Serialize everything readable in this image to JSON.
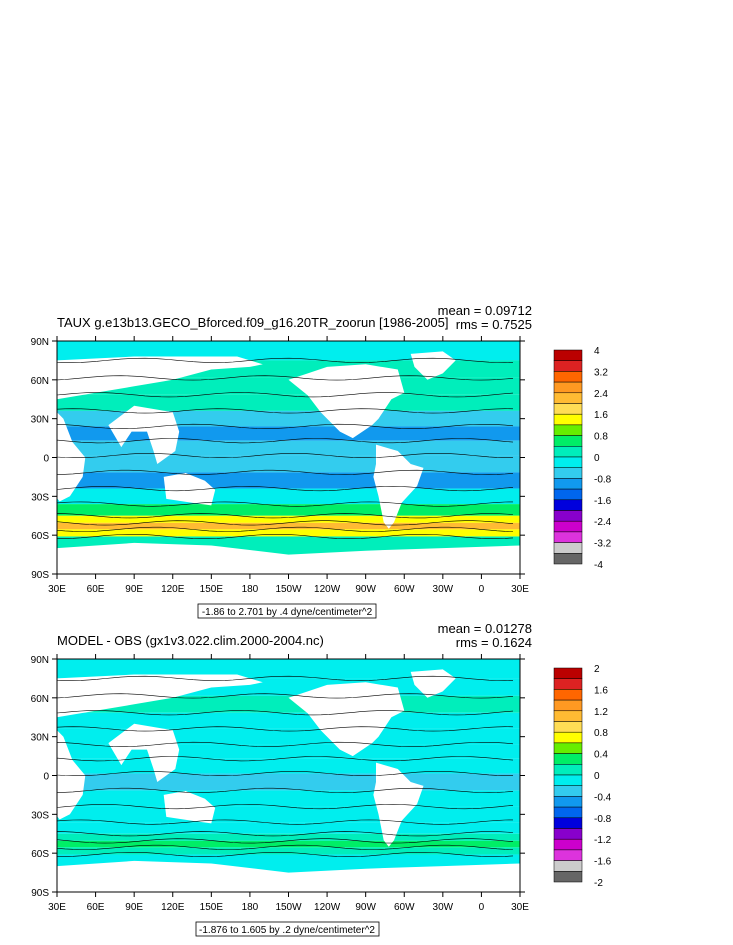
{
  "colors": {
    "land": "#ffffff",
    "ocean_base": "#00ee66",
    "contour": "#000000"
  },
  "chart_data": [
    {
      "type": "heatmap",
      "title": "TAUX g.e13b13.GECO_Bforced.f09_g16.20TR_zoorun [1986-2005]",
      "mean_label": "mean = 0.09712",
      "rms_label": "rms = 0.7525",
      "range_label": "-1.86 to 2.701 by .4 dyne/centimeter^2",
      "lon_ticks": [
        "30E",
        "60E",
        "90E",
        "120E",
        "150E",
        "180",
        "150W",
        "120W",
        "90W",
        "60W",
        "30W",
        "0",
        "30E"
      ],
      "lat_ticks": [
        "90N",
        "60N",
        "30N",
        "0",
        "30S",
        "60S",
        "90S"
      ],
      "ylim": [
        -90,
        90
      ],
      "colorbar": {
        "labels": [
          "4",
          "3.2",
          "2.4",
          "1.6",
          "0.8",
          "0",
          "-0.8",
          "-1.6",
          "-2.4",
          "-3.2",
          "-4"
        ],
        "colors": [
          "#bb0000",
          "#dd2222",
          "#ff6600",
          "#ff9922",
          "#ffbb33",
          "#ffdd55",
          "#ffff00",
          "#66ee00",
          "#00ee66",
          "#00eebb",
          "#00eeee",
          "#33ccee",
          "#1199ee",
          "#0066ee",
          "#0000dd",
          "#8800cc",
          "#cc00cc",
          "#dd33dd",
          "#cccccc",
          "#666666"
        ]
      },
      "field_rows": [
        {
          "lat": 82,
          "level": 0.2
        },
        {
          "lat": 68,
          "level": 0.3
        },
        {
          "lat": 55,
          "level": 0.6
        },
        {
          "lat": 42,
          "level": 0.5
        },
        {
          "lat": 30,
          "level": -0.2
        },
        {
          "lat": 18,
          "level": -0.7
        },
        {
          "lat": 8,
          "level": -0.5
        },
        {
          "lat": -5,
          "level": -0.4
        },
        {
          "lat": -18,
          "level": -0.7
        },
        {
          "lat": -30,
          "level": 0.1
        },
        {
          "lat": -42,
          "level": 0.9
        },
        {
          "lat": -48,
          "level": 1.8
        },
        {
          "lat": -53,
          "level": 2.4
        },
        {
          "lat": -58,
          "level": 1.7
        },
        {
          "lat": -64,
          "level": 0.6
        }
      ]
    },
    {
      "type": "heatmap",
      "title": "MODEL - OBS (gx1v3.022.clim.2000-2004.nc)",
      "mean_label": "mean = 0.01278",
      "rms_label": "rms = 0.1624",
      "range_label": "-1.876 to 1.605 by .2 dyne/centimeter^2",
      "lon_ticks": [
        "30E",
        "60E",
        "90E",
        "120E",
        "150E",
        "180",
        "150W",
        "120W",
        "90W",
        "60W",
        "30W",
        "0",
        "30E"
      ],
      "lat_ticks": [
        "90N",
        "60N",
        "30N",
        "0",
        "30S",
        "60S",
        "90S"
      ],
      "ylim": [
        -90,
        90
      ],
      "colorbar": {
        "labels": [
          "2",
          "1.6",
          "1.2",
          "0.8",
          "0.4",
          "0",
          "-0.4",
          "-0.8",
          "-1.2",
          "-1.6",
          "-2"
        ],
        "colors": [
          "#bb0000",
          "#dd2222",
          "#ff6600",
          "#ff9922",
          "#ffbb33",
          "#ffdd55",
          "#ffff00",
          "#66ee00",
          "#00ee66",
          "#00eebb",
          "#00eeee",
          "#33ccee",
          "#1199ee",
          "#0066ee",
          "#0000dd",
          "#8800cc",
          "#cc00cc",
          "#dd33dd",
          "#cccccc",
          "#666666"
        ]
      },
      "field_rows": [
        {
          "lat": 82,
          "level": 0.1
        },
        {
          "lat": 68,
          "level": 0.0
        },
        {
          "lat": 55,
          "level": 0.2
        },
        {
          "lat": 42,
          "level": 0.1
        },
        {
          "lat": 30,
          "level": 0.1
        },
        {
          "lat": 18,
          "level": 0.0
        },
        {
          "lat": 8,
          "level": 0.0
        },
        {
          "lat": -5,
          "level": -0.1
        },
        {
          "lat": -18,
          "level": 0.0
        },
        {
          "lat": -30,
          "level": 0.0
        },
        {
          "lat": -42,
          "level": 0.1
        },
        {
          "lat": -48,
          "level": 0.2
        },
        {
          "lat": -53,
          "level": 0.4
        },
        {
          "lat": -58,
          "level": 0.3
        },
        {
          "lat": -64,
          "level": 0.1
        }
      ]
    }
  ]
}
